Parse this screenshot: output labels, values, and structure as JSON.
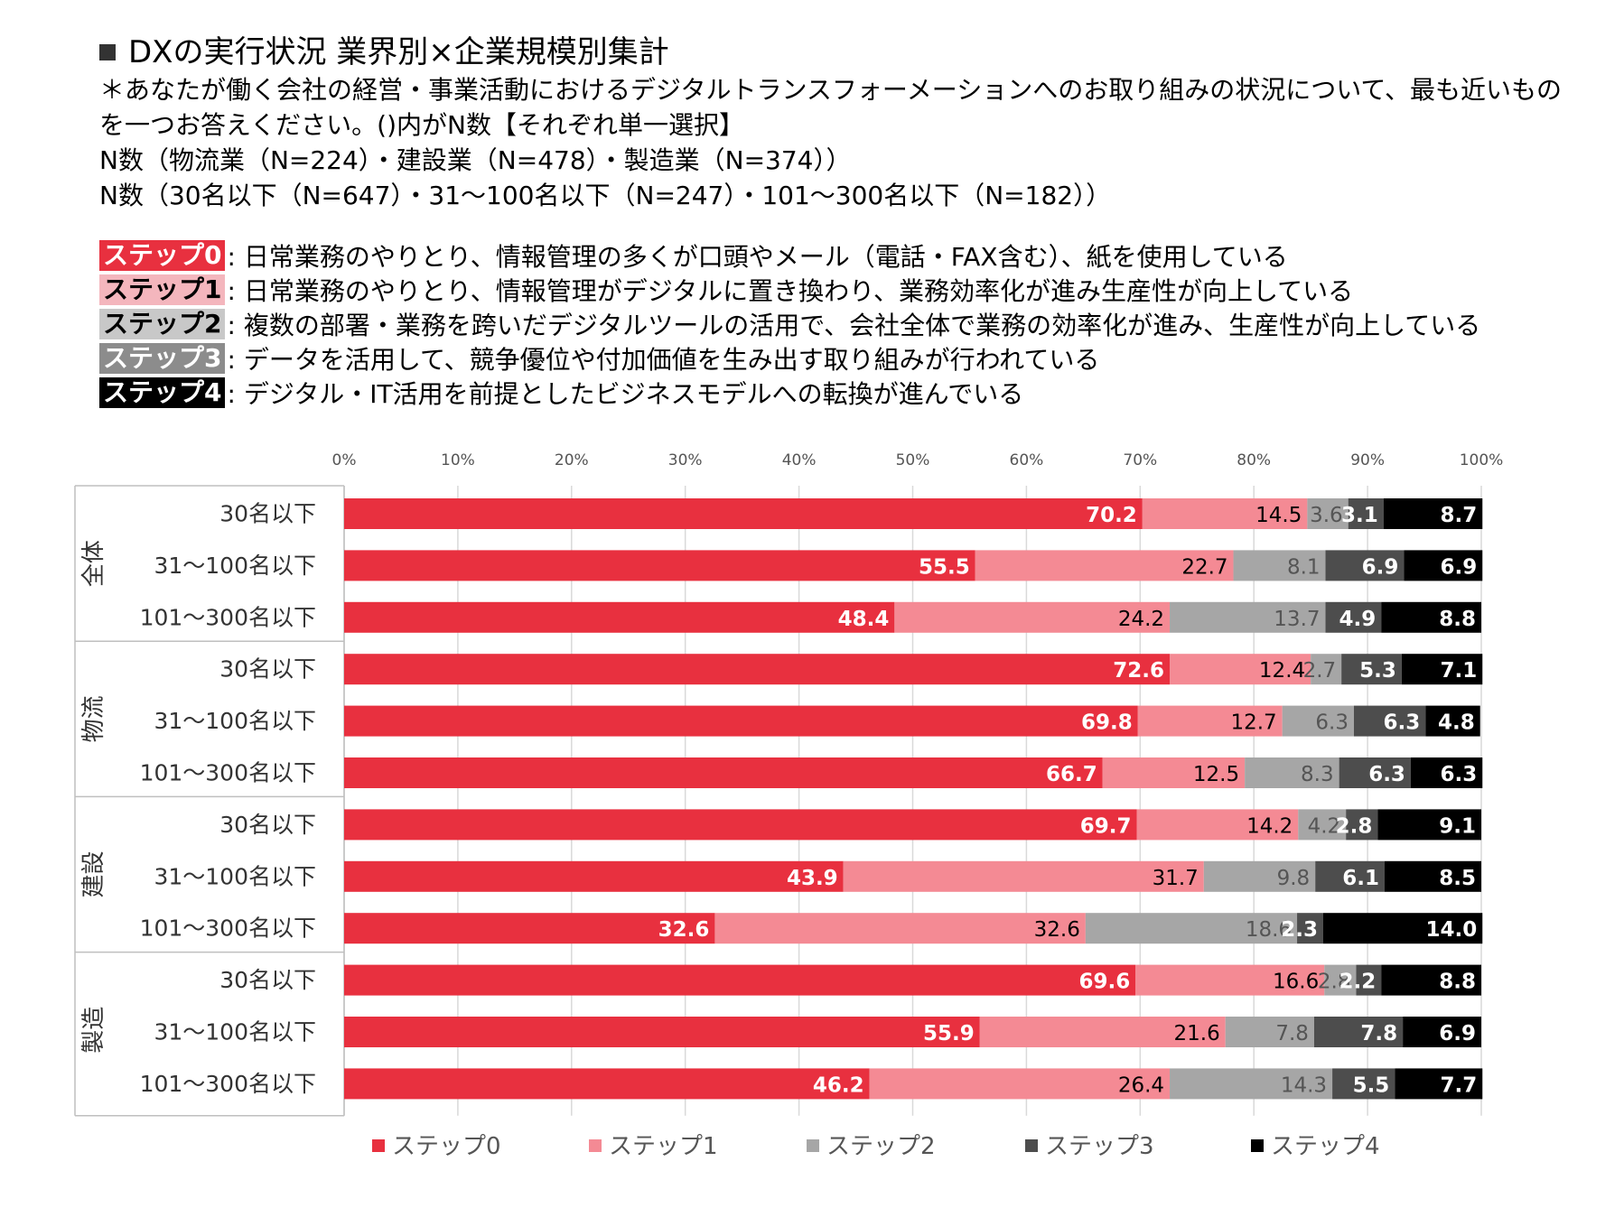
{
  "header": {
    "title": "DXの実行状況 業界別×企業規模別集計",
    "question": "＊あなたが働く会社の経営・事業活動におけるデジタルトランスフォーメーションへのお取り組みの状況について、最も近いものを一つお答えください。()内がN数【それぞれ単一選択】",
    "n_industry": "N数（物流業（N=224）・建設業（N=478）・製造業（N=374））",
    "n_size": "N数（30名以下（N=647）・31～100名以下（N=247）・101～300名以下（N=182））"
  },
  "steps": [
    {
      "label": "ステップ0",
      "desc": ": 日常業務のやりとり、情報管理の多くが口頭やメール（電話・FAX含む）、紙を使用している",
      "bg": "#e8303f",
      "fg": "#ffffff"
    },
    {
      "label": "ステップ1",
      "desc": ": 日常業務のやりとり、情報管理がデジタルに置き換わり、業務効率化が進み生産性が向上している",
      "bg": "#f4b6bd",
      "fg": "#000000"
    },
    {
      "label": "ステップ2",
      "desc": ": 複数の部署・業務を跨いだデジタルツールの活用で、会社全体で業務の効率化が進み、生産性が向上している",
      "bg": "#c8c8c8",
      "fg": "#000000"
    },
    {
      "label": "ステップ3",
      "desc": ": データを活用して、競争優位や付加価値を生み出す取り組みが行われている",
      "bg": "#8c8c8c",
      "fg": "#ffffff"
    },
    {
      "label": "ステップ4",
      "desc": ": デジタル・IT活用を前提としたビジネスモデルへの転換が進んでいる",
      "bg": "#000000",
      "fg": "#ffffff"
    }
  ],
  "chart_data": {
    "type": "bar",
    "orientation": "horizontal",
    "stacked": true,
    "xlim": [
      0,
      100
    ],
    "x_ticks": [
      "0%",
      "10%",
      "20%",
      "30%",
      "40%",
      "50%",
      "60%",
      "70%",
      "80%",
      "90%",
      "100%"
    ],
    "grid": true,
    "legend_position": "bottom",
    "groups": [
      "全体",
      "物流",
      "建設",
      "製造"
    ],
    "categories": [
      "30名以下",
      "31～100名以下",
      "101～300名以下"
    ],
    "series_names": [
      "ステップ0",
      "ステップ1",
      "ステップ2",
      "ステップ3",
      "ステップ4"
    ],
    "series_colors": [
      "#e8303f",
      "#f48a94",
      "#a6a6a6",
      "#4d4d4d",
      "#000000"
    ],
    "label_colors": [
      "#ffffff",
      "#000000",
      "#555555",
      "#ffffff",
      "#ffffff"
    ],
    "rows": [
      {
        "group": "全体",
        "category": "30名以下",
        "values": [
          70.2,
          14.5,
          3.6,
          3.1,
          8.7
        ],
        "labels": [
          "70.2",
          "14.5",
          "3.6",
          "3.1",
          "8.7"
        ]
      },
      {
        "group": "全体",
        "category": "31～100名以下",
        "values": [
          55.5,
          22.7,
          8.1,
          6.9,
          6.9
        ],
        "labels": [
          "55.5",
          "22.7",
          "8.1",
          "6.9",
          "6.9"
        ]
      },
      {
        "group": "全体",
        "category": "101～300名以下",
        "values": [
          48.4,
          24.2,
          13.7,
          4.9,
          8.8
        ],
        "labels": [
          "48.4",
          "24.2",
          "13.7",
          "4.9",
          "8.8"
        ]
      },
      {
        "group": "物流",
        "category": "30名以下",
        "values": [
          72.6,
          12.4,
          2.7,
          5.3,
          7.1
        ],
        "labels": [
          "72.6",
          "12.4",
          "2.7",
          "5.3",
          "7.1"
        ]
      },
      {
        "group": "物流",
        "category": "31～100名以下",
        "values": [
          69.8,
          12.7,
          6.3,
          6.3,
          4.8
        ],
        "labels": [
          "69.8",
          "12.7",
          "6.3",
          "6.3",
          "4.8"
        ]
      },
      {
        "group": "物流",
        "category": "101～300名以下",
        "values": [
          66.7,
          12.5,
          8.3,
          6.3,
          6.3
        ],
        "labels": [
          "66.7",
          "12.5",
          "8.3",
          "6.3",
          "6.3"
        ]
      },
      {
        "group": "建設",
        "category": "30名以下",
        "values": [
          69.7,
          14.2,
          4.2,
          2.8,
          9.1
        ],
        "labels": [
          "69.7",
          "14.2",
          "4.2",
          "2.8",
          "9.1"
        ]
      },
      {
        "group": "建設",
        "category": "31～100名以下",
        "values": [
          43.9,
          31.7,
          9.8,
          6.1,
          8.5
        ],
        "labels": [
          "43.9",
          "31.7",
          "9.8",
          "6.1",
          "8.5"
        ]
      },
      {
        "group": "建設",
        "category": "101～300名以下",
        "values": [
          32.6,
          32.6,
          18.6,
          2.3,
          14.0
        ],
        "labels": [
          "32.6",
          "32.6",
          "18.6",
          "2.3",
          "14.0"
        ]
      },
      {
        "group": "製造",
        "category": "30名以下",
        "values": [
          69.6,
          16.6,
          2.8,
          2.2,
          8.8
        ],
        "labels": [
          "69.6",
          "16.6",
          "2.8",
          "2.2",
          "8.8"
        ]
      },
      {
        "group": "製造",
        "category": "31～100名以下",
        "values": [
          55.9,
          21.6,
          7.8,
          7.8,
          6.9
        ],
        "labels": [
          "55.9",
          "21.6",
          "7.8",
          "7.8",
          "6.9"
        ]
      },
      {
        "group": "製造",
        "category": "101～300名以下",
        "values": [
          46.2,
          26.4,
          14.3,
          5.5,
          7.7
        ],
        "labels": [
          "46.2",
          "26.4",
          "14.3",
          "5.5",
          "7.7"
        ]
      }
    ]
  }
}
